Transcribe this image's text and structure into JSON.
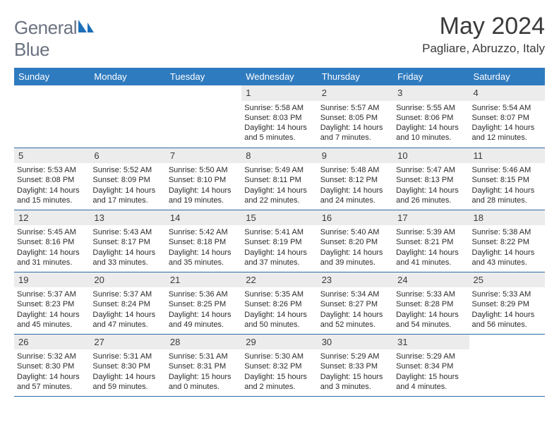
{
  "brand": {
    "part1": "General",
    "part2": "Blue"
  },
  "title": "May 2024",
  "location": "Pagliare, Abruzzo, Italy",
  "colors": {
    "header_bg": "#2f7bbf",
    "header_fg": "#ffffff",
    "daynum_bg": "#ececec",
    "rule": "#2f6aa5",
    "title_color": "#3a3a3a",
    "logo_gray": "#6b7280",
    "logo_blue": "#1d6fb8"
  },
  "days_of_week": [
    "Sunday",
    "Monday",
    "Tuesday",
    "Wednesday",
    "Thursday",
    "Friday",
    "Saturday"
  ],
  "weeks": [
    [
      {
        "n": "",
        "lines": []
      },
      {
        "n": "",
        "lines": []
      },
      {
        "n": "",
        "lines": []
      },
      {
        "n": "1",
        "lines": [
          "Sunrise: 5:58 AM",
          "Sunset: 8:03 PM",
          "Daylight: 14 hours",
          "and 5 minutes."
        ]
      },
      {
        "n": "2",
        "lines": [
          "Sunrise: 5:57 AM",
          "Sunset: 8:05 PM",
          "Daylight: 14 hours",
          "and 7 minutes."
        ]
      },
      {
        "n": "3",
        "lines": [
          "Sunrise: 5:55 AM",
          "Sunset: 8:06 PM",
          "Daylight: 14 hours",
          "and 10 minutes."
        ]
      },
      {
        "n": "4",
        "lines": [
          "Sunrise: 5:54 AM",
          "Sunset: 8:07 PM",
          "Daylight: 14 hours",
          "and 12 minutes."
        ]
      }
    ],
    [
      {
        "n": "5",
        "lines": [
          "Sunrise: 5:53 AM",
          "Sunset: 8:08 PM",
          "Daylight: 14 hours",
          "and 15 minutes."
        ]
      },
      {
        "n": "6",
        "lines": [
          "Sunrise: 5:52 AM",
          "Sunset: 8:09 PM",
          "Daylight: 14 hours",
          "and 17 minutes."
        ]
      },
      {
        "n": "7",
        "lines": [
          "Sunrise: 5:50 AM",
          "Sunset: 8:10 PM",
          "Daylight: 14 hours",
          "and 19 minutes."
        ]
      },
      {
        "n": "8",
        "lines": [
          "Sunrise: 5:49 AM",
          "Sunset: 8:11 PM",
          "Daylight: 14 hours",
          "and 22 minutes."
        ]
      },
      {
        "n": "9",
        "lines": [
          "Sunrise: 5:48 AM",
          "Sunset: 8:12 PM",
          "Daylight: 14 hours",
          "and 24 minutes."
        ]
      },
      {
        "n": "10",
        "lines": [
          "Sunrise: 5:47 AM",
          "Sunset: 8:13 PM",
          "Daylight: 14 hours",
          "and 26 minutes."
        ]
      },
      {
        "n": "11",
        "lines": [
          "Sunrise: 5:46 AM",
          "Sunset: 8:15 PM",
          "Daylight: 14 hours",
          "and 28 minutes."
        ]
      }
    ],
    [
      {
        "n": "12",
        "lines": [
          "Sunrise: 5:45 AM",
          "Sunset: 8:16 PM",
          "Daylight: 14 hours",
          "and 31 minutes."
        ]
      },
      {
        "n": "13",
        "lines": [
          "Sunrise: 5:43 AM",
          "Sunset: 8:17 PM",
          "Daylight: 14 hours",
          "and 33 minutes."
        ]
      },
      {
        "n": "14",
        "lines": [
          "Sunrise: 5:42 AM",
          "Sunset: 8:18 PM",
          "Daylight: 14 hours",
          "and 35 minutes."
        ]
      },
      {
        "n": "15",
        "lines": [
          "Sunrise: 5:41 AM",
          "Sunset: 8:19 PM",
          "Daylight: 14 hours",
          "and 37 minutes."
        ]
      },
      {
        "n": "16",
        "lines": [
          "Sunrise: 5:40 AM",
          "Sunset: 8:20 PM",
          "Daylight: 14 hours",
          "and 39 minutes."
        ]
      },
      {
        "n": "17",
        "lines": [
          "Sunrise: 5:39 AM",
          "Sunset: 8:21 PM",
          "Daylight: 14 hours",
          "and 41 minutes."
        ]
      },
      {
        "n": "18",
        "lines": [
          "Sunrise: 5:38 AM",
          "Sunset: 8:22 PM",
          "Daylight: 14 hours",
          "and 43 minutes."
        ]
      }
    ],
    [
      {
        "n": "19",
        "lines": [
          "Sunrise: 5:37 AM",
          "Sunset: 8:23 PM",
          "Daylight: 14 hours",
          "and 45 minutes."
        ]
      },
      {
        "n": "20",
        "lines": [
          "Sunrise: 5:37 AM",
          "Sunset: 8:24 PM",
          "Daylight: 14 hours",
          "and 47 minutes."
        ]
      },
      {
        "n": "21",
        "lines": [
          "Sunrise: 5:36 AM",
          "Sunset: 8:25 PM",
          "Daylight: 14 hours",
          "and 49 minutes."
        ]
      },
      {
        "n": "22",
        "lines": [
          "Sunrise: 5:35 AM",
          "Sunset: 8:26 PM",
          "Daylight: 14 hours",
          "and 50 minutes."
        ]
      },
      {
        "n": "23",
        "lines": [
          "Sunrise: 5:34 AM",
          "Sunset: 8:27 PM",
          "Daylight: 14 hours",
          "and 52 minutes."
        ]
      },
      {
        "n": "24",
        "lines": [
          "Sunrise: 5:33 AM",
          "Sunset: 8:28 PM",
          "Daylight: 14 hours",
          "and 54 minutes."
        ]
      },
      {
        "n": "25",
        "lines": [
          "Sunrise: 5:33 AM",
          "Sunset: 8:29 PM",
          "Daylight: 14 hours",
          "and 56 minutes."
        ]
      }
    ],
    [
      {
        "n": "26",
        "lines": [
          "Sunrise: 5:32 AM",
          "Sunset: 8:30 PM",
          "Daylight: 14 hours",
          "and 57 minutes."
        ]
      },
      {
        "n": "27",
        "lines": [
          "Sunrise: 5:31 AM",
          "Sunset: 8:30 PM",
          "Daylight: 14 hours",
          "and 59 minutes."
        ]
      },
      {
        "n": "28",
        "lines": [
          "Sunrise: 5:31 AM",
          "Sunset: 8:31 PM",
          "Daylight: 15 hours",
          "and 0 minutes."
        ]
      },
      {
        "n": "29",
        "lines": [
          "Sunrise: 5:30 AM",
          "Sunset: 8:32 PM",
          "Daylight: 15 hours",
          "and 2 minutes."
        ]
      },
      {
        "n": "30",
        "lines": [
          "Sunrise: 5:29 AM",
          "Sunset: 8:33 PM",
          "Daylight: 15 hours",
          "and 3 minutes."
        ]
      },
      {
        "n": "31",
        "lines": [
          "Sunrise: 5:29 AM",
          "Sunset: 8:34 PM",
          "Daylight: 15 hours",
          "and 4 minutes."
        ]
      },
      {
        "n": "",
        "lines": []
      }
    ]
  ]
}
